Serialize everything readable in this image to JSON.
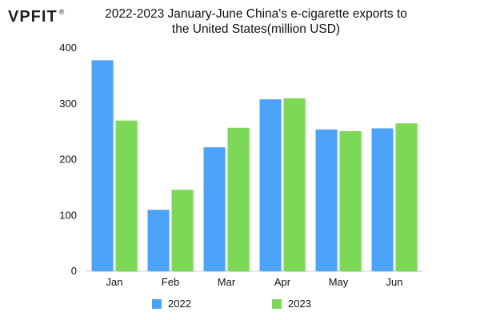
{
  "brand": {
    "logo_text": "VPFIT",
    "registered_mark": "®"
  },
  "chart_data": {
    "type": "bar",
    "title": "2022-2023 January-June China's e-cigarette exports to the United States(million USD)",
    "categories": [
      "Jan",
      "Feb",
      "Mar",
      "Apr",
      "May",
      "Jun"
    ],
    "series": [
      {
        "name": "2022",
        "color": "#4da3f7",
        "values": [
          378,
          110,
          222,
          308,
          254,
          256
        ]
      },
      {
        "name": "2023",
        "color": "#7ed857",
        "values": [
          270,
          146,
          257,
          310,
          251,
          265
        ]
      }
    ],
    "ylim": [
      0,
      400
    ],
    "yticks": [
      0,
      100,
      200,
      300,
      400
    ],
    "xlabel": "",
    "ylabel": "",
    "grid": false,
    "legend_position": "bottom"
  }
}
